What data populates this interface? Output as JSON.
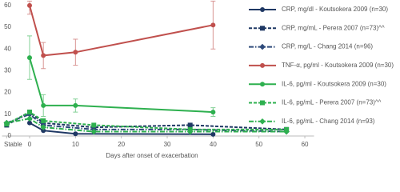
{
  "chart_data": {
    "type": "line",
    "x_label": "Days after onset of exacerbation",
    "xlim": [
      -6,
      62
    ],
    "ylim": [
      0,
      62
    ],
    "xticks": [
      {
        "value": -5,
        "label": "Stable"
      },
      0,
      10,
      20,
      30,
      40,
      50,
      60
    ],
    "yticks": [
      0,
      10,
      20,
      30,
      40,
      50,
      60
    ],
    "grid": false,
    "legend": "right",
    "series": [
      {
        "name": "CRP, mg/dl - Koutsokera 2009 (n=30)",
        "color": "#1f3864",
        "line_style": "solid",
        "marker": "circle",
        "x": [
          0,
          3,
          10,
          40
        ],
        "values": [
          6,
          2.5,
          1,
          0.8
        ]
      },
      {
        "name": "CRP, mg/mL - Perera 2007 (n=73)^^",
        "color": "#1f3864",
        "line_style": "dashed",
        "marker": "square",
        "x": [
          -5,
          0,
          3,
          14,
          35,
          56
        ],
        "values": [
          5,
          11,
          6,
          4,
          5,
          3
        ]
      },
      {
        "name": "CRP, mg/L - Chang 2014 (n=96)",
        "color": "#2e4a7a",
        "line_style": "dashdot",
        "marker": "diamond",
        "x": [
          -5,
          0,
          3,
          14,
          35,
          56
        ],
        "values": [
          6,
          10,
          5,
          3,
          3,
          2
        ]
      },
      {
        "name": "TNF-α, pg/ml - Koutsokera 2009 (n=30)",
        "color": "#c0504d",
        "line_style": "solid",
        "marker": "circle",
        "x": [
          0,
          3,
          10,
          40
        ],
        "values": [
          60,
          37,
          38.5,
          51
        ],
        "errors": [
          4,
          6,
          6,
          11
        ]
      },
      {
        "name": "IL-6, pg/ml - Koutsokera 2009 (n=30)",
        "color": "#2eb04f",
        "line_style": "solid",
        "marker": "circle",
        "x": [
          0,
          3,
          10,
          40
        ],
        "values": [
          36,
          14,
          14,
          11
        ],
        "errors": [
          10,
          5,
          3,
          2
        ]
      },
      {
        "name": "IL-6, pg/mL - Perera 2007 (n=73)^^",
        "color": "#2eb04f",
        "line_style": "dashed",
        "marker": "square",
        "x": [
          -5,
          0,
          3,
          14,
          35,
          56
        ],
        "values": [
          5.5,
          11,
          7,
          5,
          3,
          3
        ]
      },
      {
        "name": "IL-6, pg/mL - Chang 2014 (n=93)",
        "color": "#2eb04f",
        "line_style": "dashdot",
        "marker": "diamond",
        "x": [
          -5,
          0,
          3,
          14,
          35,
          56
        ],
        "values": [
          6,
          8,
          4,
          2,
          2,
          2
        ]
      }
    ]
  }
}
